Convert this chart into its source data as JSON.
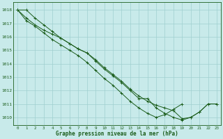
{
  "title": "Graphe pression niveau de la mer (hPa)",
  "bg_color": "#c8eaea",
  "grid_color": "#9fcfcf",
  "line_color": "#1a5c1a",
  "marker_color": "#1a5c1a",
  "xlim": [
    -0.5,
    23.5
  ],
  "ylim": [
    1009.4,
    1018.6
  ],
  "yticks": [
    1010,
    1011,
    1012,
    1013,
    1014,
    1015,
    1016,
    1017,
    1018
  ],
  "xticks": [
    0,
    1,
    2,
    3,
    4,
    5,
    6,
    7,
    8,
    9,
    10,
    11,
    12,
    13,
    14,
    15,
    16,
    17,
    18,
    19,
    20,
    21,
    22,
    23
  ],
  "series": [
    [
      1018.0,
      1018.0,
      1017.4,
      1016.9,
      1016.4,
      1015.9,
      1015.5,
      1015.1,
      1014.8,
      1014.2,
      1013.6,
      1013.1,
      1012.6,
      1012.0,
      1011.4,
      1011.4,
      1010.7,
      1010.3,
      1010.0,
      1009.8,
      1010.0,
      1010.4,
      1011.0,
      1011.0
    ],
    [
      1018.0,
      1017.4,
      1016.9,
      1016.5,
      1016.2,
      1015.9,
      1015.5,
      1015.1,
      1014.8,
      1014.3,
      1013.7,
      1013.2,
      1012.7,
      1012.1,
      1011.6,
      1011.2,
      1010.9,
      1010.7,
      1010.5,
      1009.9,
      1010.0,
      1010.4,
      1011.0,
      1011.0
    ],
    [
      1018.0,
      1017.2,
      1016.8,
      1016.3,
      1015.8,
      1015.4,
      1015.0,
      1014.6,
      1014.1,
      1013.5,
      1012.9,
      1012.4,
      1011.8,
      1011.2,
      1010.7,
      1010.3,
      1010.0,
      1010.2,
      1010.6,
      1011.0
    ]
  ],
  "series_x": [
    [
      0,
      1,
      2,
      3,
      4,
      5,
      6,
      7,
      8,
      9,
      10,
      11,
      12,
      13,
      14,
      15,
      16,
      17,
      18,
      19,
      20,
      21,
      22,
      23
    ],
    [
      0,
      1,
      2,
      3,
      4,
      5,
      6,
      7,
      8,
      9,
      10,
      11,
      12,
      13,
      14,
      15,
      16,
      17,
      18,
      19,
      20,
      21,
      22,
      23
    ],
    [
      0,
      1,
      2,
      3,
      4,
      5,
      6,
      7,
      8,
      9,
      10,
      11,
      12,
      13,
      14,
      15,
      16,
      17,
      18,
      19
    ]
  ]
}
